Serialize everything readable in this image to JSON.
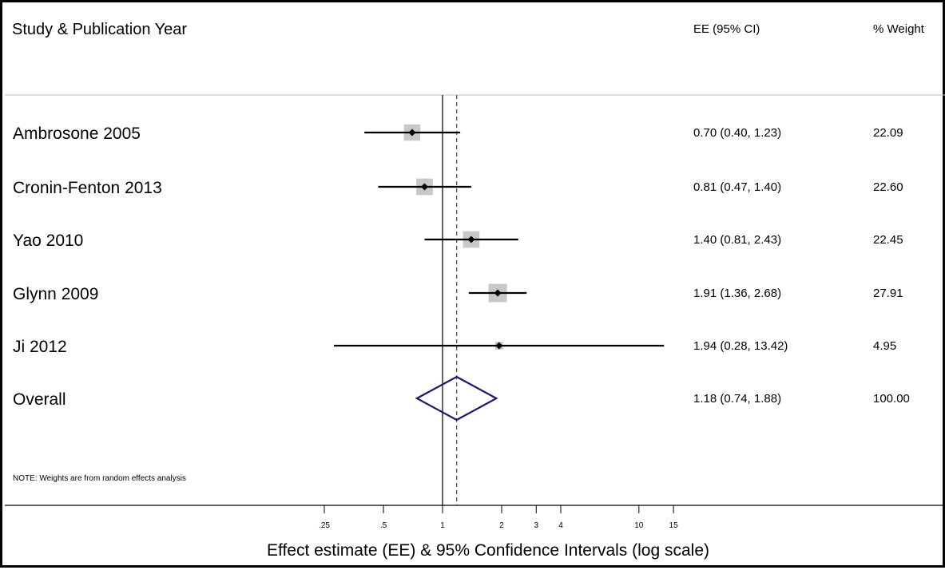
{
  "chart_data": {
    "type": "forest",
    "columns": {
      "study": "Study & Publication Year",
      "estimate": "EE (95% CI)",
      "weight": "% Weight"
    },
    "studies": [
      {
        "label": "Ambrosone 2005",
        "ee": 0.7,
        "lo": 0.4,
        "hi": 1.23,
        "ci_text": "0.70 (0.40, 1.23)",
        "weight": 22.09,
        "weight_text": "22.09"
      },
      {
        "label": "Cronin-Fenton 2013",
        "ee": 0.81,
        "lo": 0.47,
        "hi": 1.4,
        "ci_text": "0.81 (0.47, 1.40)",
        "weight": 22.6,
        "weight_text": "22.60"
      },
      {
        "label": "Yao 2010",
        "ee": 1.4,
        "lo": 0.81,
        "hi": 2.43,
        "ci_text": "1.40 (0.81, 2.43)",
        "weight": 22.45,
        "weight_text": "22.45"
      },
      {
        "label": "Glynn 2009",
        "ee": 1.91,
        "lo": 1.36,
        "hi": 2.68,
        "ci_text": "1.91 (1.36, 2.68)",
        "weight": 27.91,
        "weight_text": "27.91"
      },
      {
        "label": "Ji 2012",
        "ee": 1.94,
        "lo": 0.28,
        "hi": 13.42,
        "ci_text": "1.94 (0.28, 13.42)",
        "weight": 4.95,
        "weight_text": "4.95"
      }
    ],
    "overall": {
      "label": "Overall",
      "ee": 1.18,
      "lo": 0.74,
      "hi": 1.88,
      "ci_text": "1.18 (0.74, 1.88)",
      "weight_text": "100.00"
    },
    "note": "NOTE: Weights are from random effects analysis",
    "xaxis": {
      "scale": "log",
      "ticks": [
        {
          "value": 0.25,
          "label": ".25"
        },
        {
          "value": 0.5,
          "label": ".5"
        },
        {
          "value": 1,
          "label": "1"
        },
        {
          "value": 2,
          "label": "2"
        },
        {
          "value": 3,
          "label": "3"
        },
        {
          "value": 4,
          "label": "4"
        },
        {
          "value": 10,
          "label": "10"
        },
        {
          "value": 15,
          "label": "15"
        }
      ],
      "label": "Effect estimate (EE) & 95% Confidence Intervals (log scale)",
      "null_line": 1
    },
    "colors": {
      "ci_line": "#000000",
      "point": "#000000",
      "weight_box": "#c8c8c8",
      "diamond": "#1a1a6e",
      "overall_line": "#8b2a2a",
      "separator": "#bfbfbf"
    }
  }
}
